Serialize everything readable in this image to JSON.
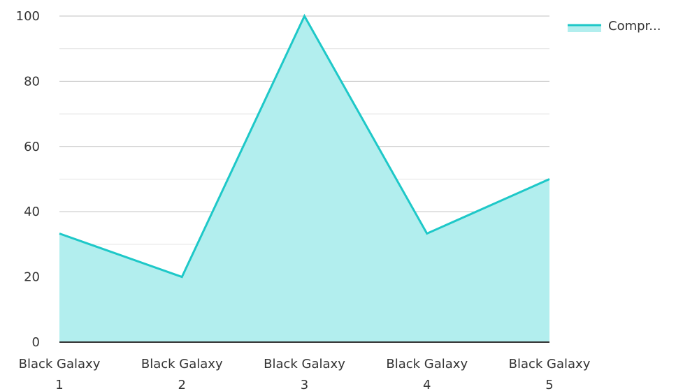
{
  "chart_data": {
    "type": "area",
    "categories": [
      "Black Galaxy 1",
      "Black Galaxy 2",
      "Black Galaxy 3",
      "Black Galaxy 4",
      "Black Galaxy 5"
    ],
    "category_lines": [
      [
        "Black Galaxy",
        "1"
      ],
      [
        "Black Galaxy",
        "2"
      ],
      [
        "Black Galaxy",
        "3"
      ],
      [
        "Black Galaxy",
        "4"
      ],
      [
        "Black Galaxy",
        "5"
      ]
    ],
    "series": [
      {
        "name": "Compr...",
        "values": [
          33.3,
          20,
          100,
          33.3,
          50
        ]
      }
    ],
    "ylim": [
      0,
      100
    ],
    "yticks": [
      0,
      20,
      40,
      60,
      80,
      100
    ],
    "ytick_labels": [
      "0",
      "20",
      "40",
      "60",
      "80",
      "100"
    ],
    "grid": true,
    "legend_position": "top-right",
    "colors": {
      "line": "#1ec8c8",
      "fill": "#b2eeee",
      "grid_major": "#c0c0c0",
      "grid_minor": "#e2e2e2",
      "axis": "#333333"
    }
  }
}
